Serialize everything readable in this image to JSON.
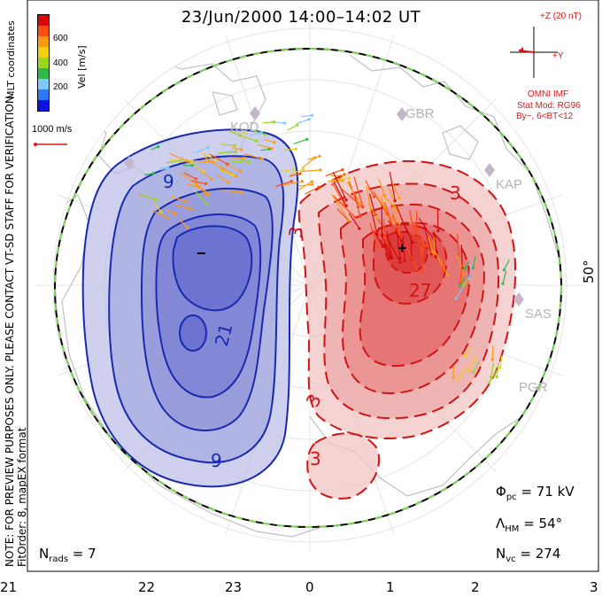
{
  "title": "23/Jun/2000 14:00–14:02 UT",
  "imf": {
    "bz_label": "+Z (20 nT)",
    "by_label": "+Y",
    "source": "OMNI IMF",
    "stat_mod": "Stat Mod: RG96",
    "condition": "By−, 6<BT<12"
  },
  "legend": {
    "scale_label": "1000 m/s",
    "coords": "MLT coordinates",
    "vel_label": "Vel [m/s]",
    "ticks": [
      "600",
      "400",
      "200"
    ],
    "colors": [
      "#1010e0",
      "#2a78ff",
      "#7fc8ff",
      "#2fb84a",
      "#9ad81e",
      "#f0d010",
      "#ff9a10",
      "#ff4a10",
      "#d80808"
    ]
  },
  "note": "NOTE: FOR PREVIEW PURPOSES ONLY. PLEASE CONTACT VT-SD STAFF FOR VERIFICATION.",
  "fitorder": "FitOrder: 8, mapEX format",
  "latitude_label": "50°",
  "stats": {
    "phi_pc": "71 kV",
    "lambda_hm": "54°",
    "nvc": "274",
    "nrads": "7"
  },
  "radar_sites": [
    "GBR",
    "KAP",
    "SAS",
    "PGR",
    "KOD"
  ],
  "mlt_ticks": [
    "21",
    "22",
    "23",
    "0",
    "1",
    "2",
    "3"
  ],
  "contour_labels": [
    "9",
    "21",
    "9",
    "3",
    "3",
    "27",
    "3",
    "3"
  ],
  "extrema_markers": [
    "−",
    "+"
  ],
  "colors": {
    "negative_cell": "#1a2ab0",
    "positive_cell": "#d01414",
    "boundary_dash": "#7ed85a"
  }
}
